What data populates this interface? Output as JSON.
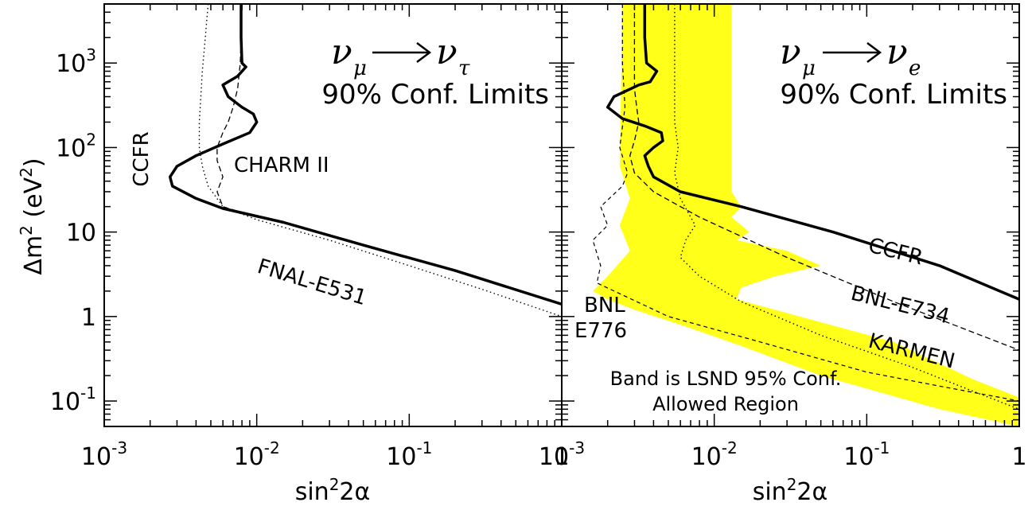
{
  "chart_data": [
    {
      "type": "line",
      "panel": "left",
      "title": [
        "ν_μ → ν_τ",
        "90% Conf. Limits"
      ],
      "title_parts": {
        "nu": "ν",
        "from_sub": "μ",
        "to_sub": "τ",
        "line2": "90% Conf. Limits"
      },
      "xlabel": "sin²2α",
      "ylabel": "Δm² (eV²)",
      "xscale": "log",
      "yscale": "log",
      "xlim": [
        0.001,
        1
      ],
      "ylim": [
        0.05,
        5000
      ],
      "x_ticks": [
        {
          "value": 0.001,
          "base": "10",
          "exp": "-3"
        },
        {
          "value": 0.01,
          "base": "10",
          "exp": "-2"
        },
        {
          "value": 0.1,
          "base": "10",
          "exp": "-1"
        },
        {
          "value": 1,
          "base": "1",
          "exp": ""
        }
      ],
      "y_ticks": [
        {
          "value": 0.1,
          "base": "10",
          "exp": "-1"
        },
        {
          "value": 1,
          "base": "1",
          "exp": ""
        },
        {
          "value": 10,
          "base": "10",
          "exp": ""
        },
        {
          "value": 100,
          "base": "10",
          "exp": "2"
        },
        {
          "value": 1000,
          "base": "10",
          "exp": "3"
        }
      ],
      "series": [
        {
          "name": "CCFR",
          "style": "thick-solid",
          "x": [
            0.0079,
            0.0079,
            0.008,
            0.0085,
            0.0075,
            0.006,
            0.0065,
            0.008,
            0.0095,
            0.01,
            0.009,
            0.006,
            0.004,
            0.003,
            0.0027,
            0.0028,
            0.004,
            0.006,
            0.015,
            0.05,
            0.2,
            1.0
          ],
          "y": [
            5000,
            2000,
            1000,
            900,
            700,
            550,
            400,
            300,
            250,
            200,
            150,
            110,
            80,
            60,
            45,
            35,
            25,
            19,
            13,
            7,
            3.5,
            1.4
          ]
        },
        {
          "name": "CHARM II",
          "style": "dashed",
          "x": [
            0.008,
            0.0078,
            0.0075,
            0.007,
            0.0065,
            0.006,
            0.0055,
            0.0055,
            0.006,
            0.0055,
            0.006,
            0.008,
            0.015,
            0.05
          ],
          "y": [
            5000,
            1000,
            500,
            300,
            200,
            150,
            100,
            70,
            45,
            30,
            20,
            17,
            13,
            7
          ]
        },
        {
          "name": "FNAL-E531",
          "style": "dotted",
          "x": [
            0.0048,
            0.0046,
            0.0044,
            0.0043,
            0.0042,
            0.0042,
            0.0044,
            0.0048,
            0.006,
            0.01,
            0.03,
            0.1,
            0.3,
            1.0
          ],
          "y": [
            5000,
            2000,
            800,
            400,
            200,
            100,
            60,
            35,
            20,
            14,
            8,
            4,
            2.1,
            1.0
          ]
        }
      ]
    },
    {
      "type": "line",
      "panel": "right",
      "title": [
        "ν_μ → ν_e",
        "90% Conf. Limits"
      ],
      "title_parts": {
        "nu": "ν",
        "from_sub": "μ",
        "to_sub": "e",
        "line2": "90% Conf. Limits"
      },
      "xlabel": "sin²2α",
      "xscale": "log",
      "yscale": "log",
      "xlim": [
        0.001,
        1
      ],
      "ylim": [
        0.05,
        5000
      ],
      "x_ticks": [
        {
          "value": 0.001,
          "base": "10",
          "exp": "-3"
        },
        {
          "value": 0.01,
          "base": "10",
          "exp": "-2"
        },
        {
          "value": 0.1,
          "base": "10",
          "exp": "-1"
        },
        {
          "value": 1,
          "base": "1",
          "exp": ""
        }
      ],
      "band": {
        "name": "LSND 95% Conf. Allowed Region",
        "outline_x": [
          0.0025,
          0.013,
          0.013,
          0.015,
          0.013,
          0.017,
          0.014,
          0.03,
          0.05,
          0.025,
          0.015,
          0.014,
          0.03,
          0.15,
          0.5,
          1.0,
          1.0,
          0.3,
          0.05,
          0.015,
          0.006,
          0.003,
          0.002,
          0.0016,
          0.002,
          0.0028,
          0.0024,
          0.0028,
          0.0024,
          0.0025
        ],
        "outline_y": [
          5000,
          5000,
          30,
          20,
          15,
          10,
          8,
          6,
          4,
          3,
          2.2,
          1.6,
          1.1,
          0.5,
          0.18,
          0.11,
          0.05,
          0.08,
          0.2,
          0.45,
          0.8,
          1.2,
          1.6,
          2.0,
          3.0,
          6.0,
          12.0,
          25.0,
          60.0,
          5000
        ]
      },
      "band_label": [
        "Band is LSND 95% Conf.",
        "Allowed Region"
      ],
      "series": [
        {
          "name": "CCFR",
          "style": "thick-solid",
          "x": [
            0.0035,
            0.0035,
            0.0036,
            0.0042,
            0.0038,
            0.0032,
            0.0022,
            0.002,
            0.0025,
            0.0035,
            0.0045,
            0.0046,
            0.004,
            0.0035,
            0.0037,
            0.004,
            0.006,
            0.015,
            0.06,
            0.3,
            1.0
          ],
          "y": [
            5000,
            2000,
            1000,
            800,
            600,
            550,
            400,
            300,
            220,
            180,
            150,
            120,
            100,
            80,
            60,
            45,
            30,
            20,
            10,
            4,
            1.6
          ]
        },
        {
          "name": "BNL-E734",
          "style": "dashed",
          "x": [
            0.003,
            0.003,
            0.003,
            0.0031,
            0.0032,
            0.003,
            0.0028,
            0.003,
            0.004,
            0.008,
            0.03,
            0.15,
            1.0
          ],
          "y": [
            5000,
            1000,
            500,
            300,
            200,
            120,
            80,
            50,
            30,
            15,
            5,
            1.5,
            0.4
          ]
        },
        {
          "name": "BNL E776",
          "style": "thin-dashed",
          "x": [
            0.0025,
            0.0025,
            0.0026,
            0.0024,
            0.0027,
            0.0025,
            0.0018,
            0.002,
            0.0016,
            0.0018,
            0.0017,
            0.0025,
            0.005,
            0.02,
            0.1,
            0.3,
            1.0
          ],
          "y": [
            5000,
            1000,
            300,
            100,
            50,
            35,
            20,
            12,
            8,
            4,
            2.5,
            1.8,
            1.0,
            0.5,
            0.22,
            0.15,
            0.1
          ]
        },
        {
          "name": "KARMEN",
          "style": "dotted",
          "x": [
            0.0055,
            0.0055,
            0.0055,
            0.0058,
            0.0055,
            0.006,
            0.0075,
            0.0065,
            0.006,
            0.008,
            0.015,
            0.05,
            0.2,
            0.5,
            1.0
          ],
          "y": [
            5000,
            1000,
            200,
            100,
            50,
            25,
            12,
            8,
            5,
            3,
            1.5,
            0.6,
            0.25,
            0.13,
            0.08
          ]
        }
      ]
    }
  ],
  "labels": {
    "ylabel_main": "Δm",
    "ylabel_exp": "2",
    "ylabel_unit_open": " (eV",
    "ylabel_unit_exp": "2",
    "ylabel_unit_close": ")",
    "xlabel_main": "sin",
    "xlabel_exp": "2",
    "xlabel_tail": "2α",
    "left": {
      "ccfr": "CCFR",
      "charm": "CHARM II",
      "fnal": "FNAL-E531"
    },
    "right": {
      "ccfr": "CCFR",
      "bnl734": "BNL-E734",
      "karmen": "KARMEN",
      "bnl776_line1": "BNL",
      "bnl776_line2": "E776"
    }
  }
}
